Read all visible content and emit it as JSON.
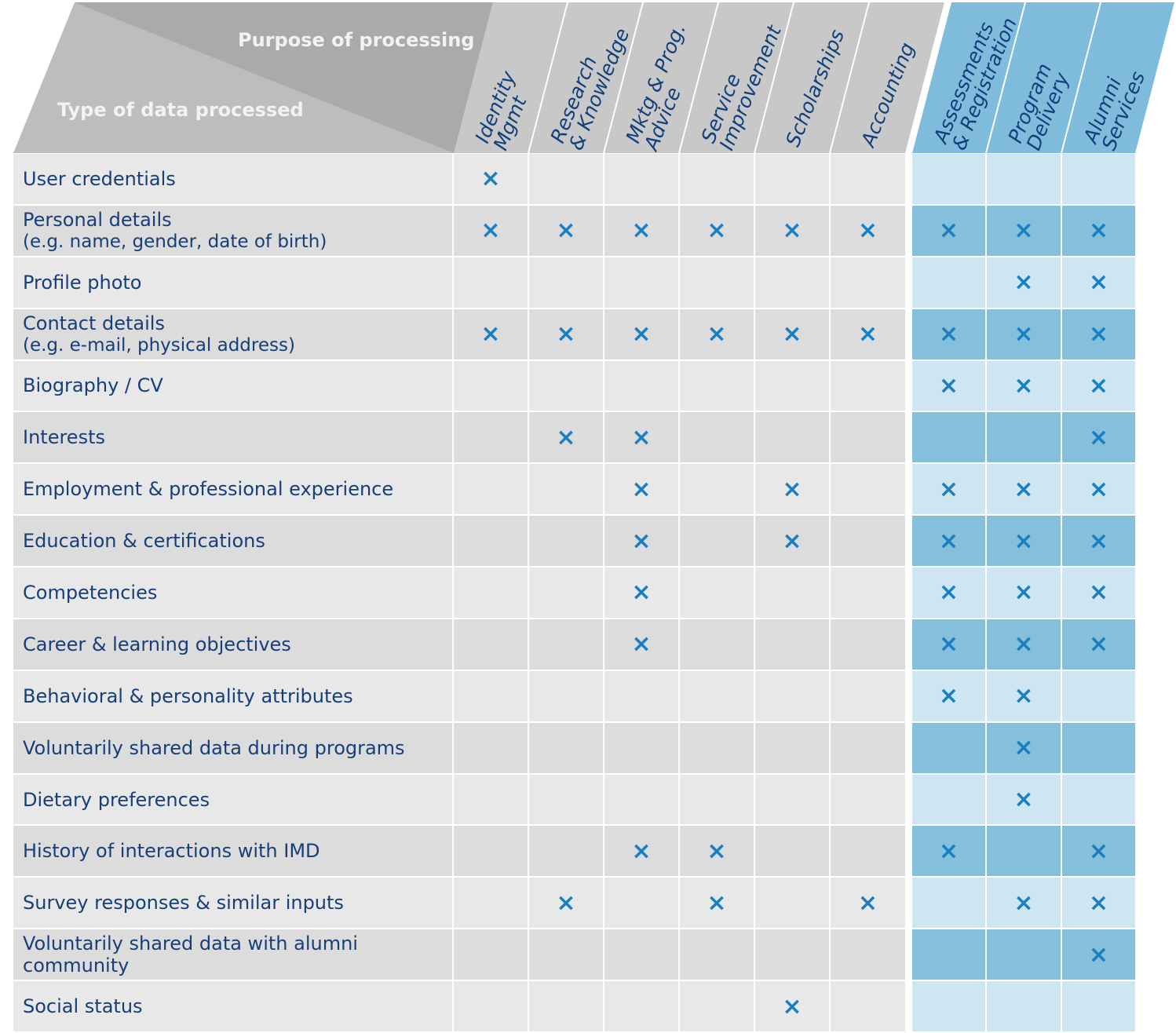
{
  "header": {
    "purpose": "Purpose of processing",
    "type": "Type of data processed",
    "columns": [
      [
        "Identity",
        "Mgmt"
      ],
      [
        "Research",
        "& Knowledge"
      ],
      [
        "Mktg & Prog.",
        "Advice"
      ],
      [
        "Service",
        "Improvement"
      ],
      [
        "Scholarships"
      ],
      [
        "Accounting"
      ],
      [
        "Assessments",
        "& Registration"
      ],
      [
        "Program",
        "Delivery"
      ],
      [
        "Alumni",
        "Services"
      ]
    ]
  },
  "table": {
    "rows": [
      {
        "label": "User credentials",
        "cells": [
          "×",
          null,
          null,
          null,
          null,
          null,
          null,
          null,
          null
        ]
      },
      {
        "label": "Personal details",
        "note": "(e.g. name, gender, date of birth)",
        "cells": [
          "×",
          "×",
          "×",
          "×",
          "×",
          "×",
          "×",
          "×",
          "×"
        ]
      },
      {
        "label": "Profile photo",
        "cells": [
          null,
          null,
          null,
          null,
          null,
          null,
          null,
          "×",
          "×"
        ]
      },
      {
        "label": "Contact details",
        "note": "(e.g. e-mail, physical address)",
        "cells": [
          "×",
          "×",
          "×",
          "×",
          "×",
          "×",
          "×",
          "×",
          "×"
        ]
      },
      {
        "label": "Biography / CV",
        "cells": [
          null,
          null,
          null,
          null,
          null,
          null,
          "×",
          "×",
          "×"
        ]
      },
      {
        "label": "Interests",
        "cells": [
          null,
          "×",
          "×",
          null,
          null,
          null,
          null,
          null,
          "×"
        ]
      },
      {
        "label": "Employment & professional experience",
        "cells": [
          null,
          null,
          "×",
          null,
          "×",
          null,
          "×",
          "×",
          "×"
        ]
      },
      {
        "label": "Education & certifications",
        "cells": [
          null,
          null,
          "×",
          null,
          "×",
          null,
          "×",
          "×",
          "×"
        ]
      },
      {
        "label": "Competencies",
        "cells": [
          null,
          null,
          "×",
          null,
          null,
          null,
          "×",
          "×",
          "×"
        ]
      },
      {
        "label": "Career & learning objectives",
        "cells": [
          null,
          null,
          "×",
          null,
          null,
          null,
          "×",
          "×",
          "×"
        ]
      },
      {
        "label": "Behavioral & personality attributes",
        "cells": [
          null,
          null,
          null,
          null,
          null,
          null,
          "×",
          "×",
          null
        ]
      },
      {
        "label": "Voluntarily shared data during programs",
        "cells": [
          null,
          null,
          null,
          null,
          null,
          null,
          null,
          "×",
          null
        ]
      },
      {
        "label": "Dietary preferences",
        "cells": [
          null,
          null,
          null,
          null,
          null,
          null,
          null,
          "×",
          null
        ]
      },
      {
        "label": "History of interactions with IMD",
        "cells": [
          null,
          null,
          "×",
          "×",
          null,
          null,
          "×",
          null,
          "×"
        ]
      },
      {
        "label": "Survey responses & similar inputs",
        "cells": [
          null,
          "×",
          null,
          "×",
          null,
          "×",
          null,
          "×",
          "×"
        ]
      },
      {
        "label": "Voluntarily shared data with alumni community",
        "cells": [
          null,
          null,
          null,
          null,
          null,
          null,
          null,
          null,
          "×"
        ]
      },
      {
        "label": "Social status",
        "cells": [
          null,
          null,
          null,
          null,
          "×",
          null,
          null,
          null,
          null
        ]
      }
    ]
  }
}
